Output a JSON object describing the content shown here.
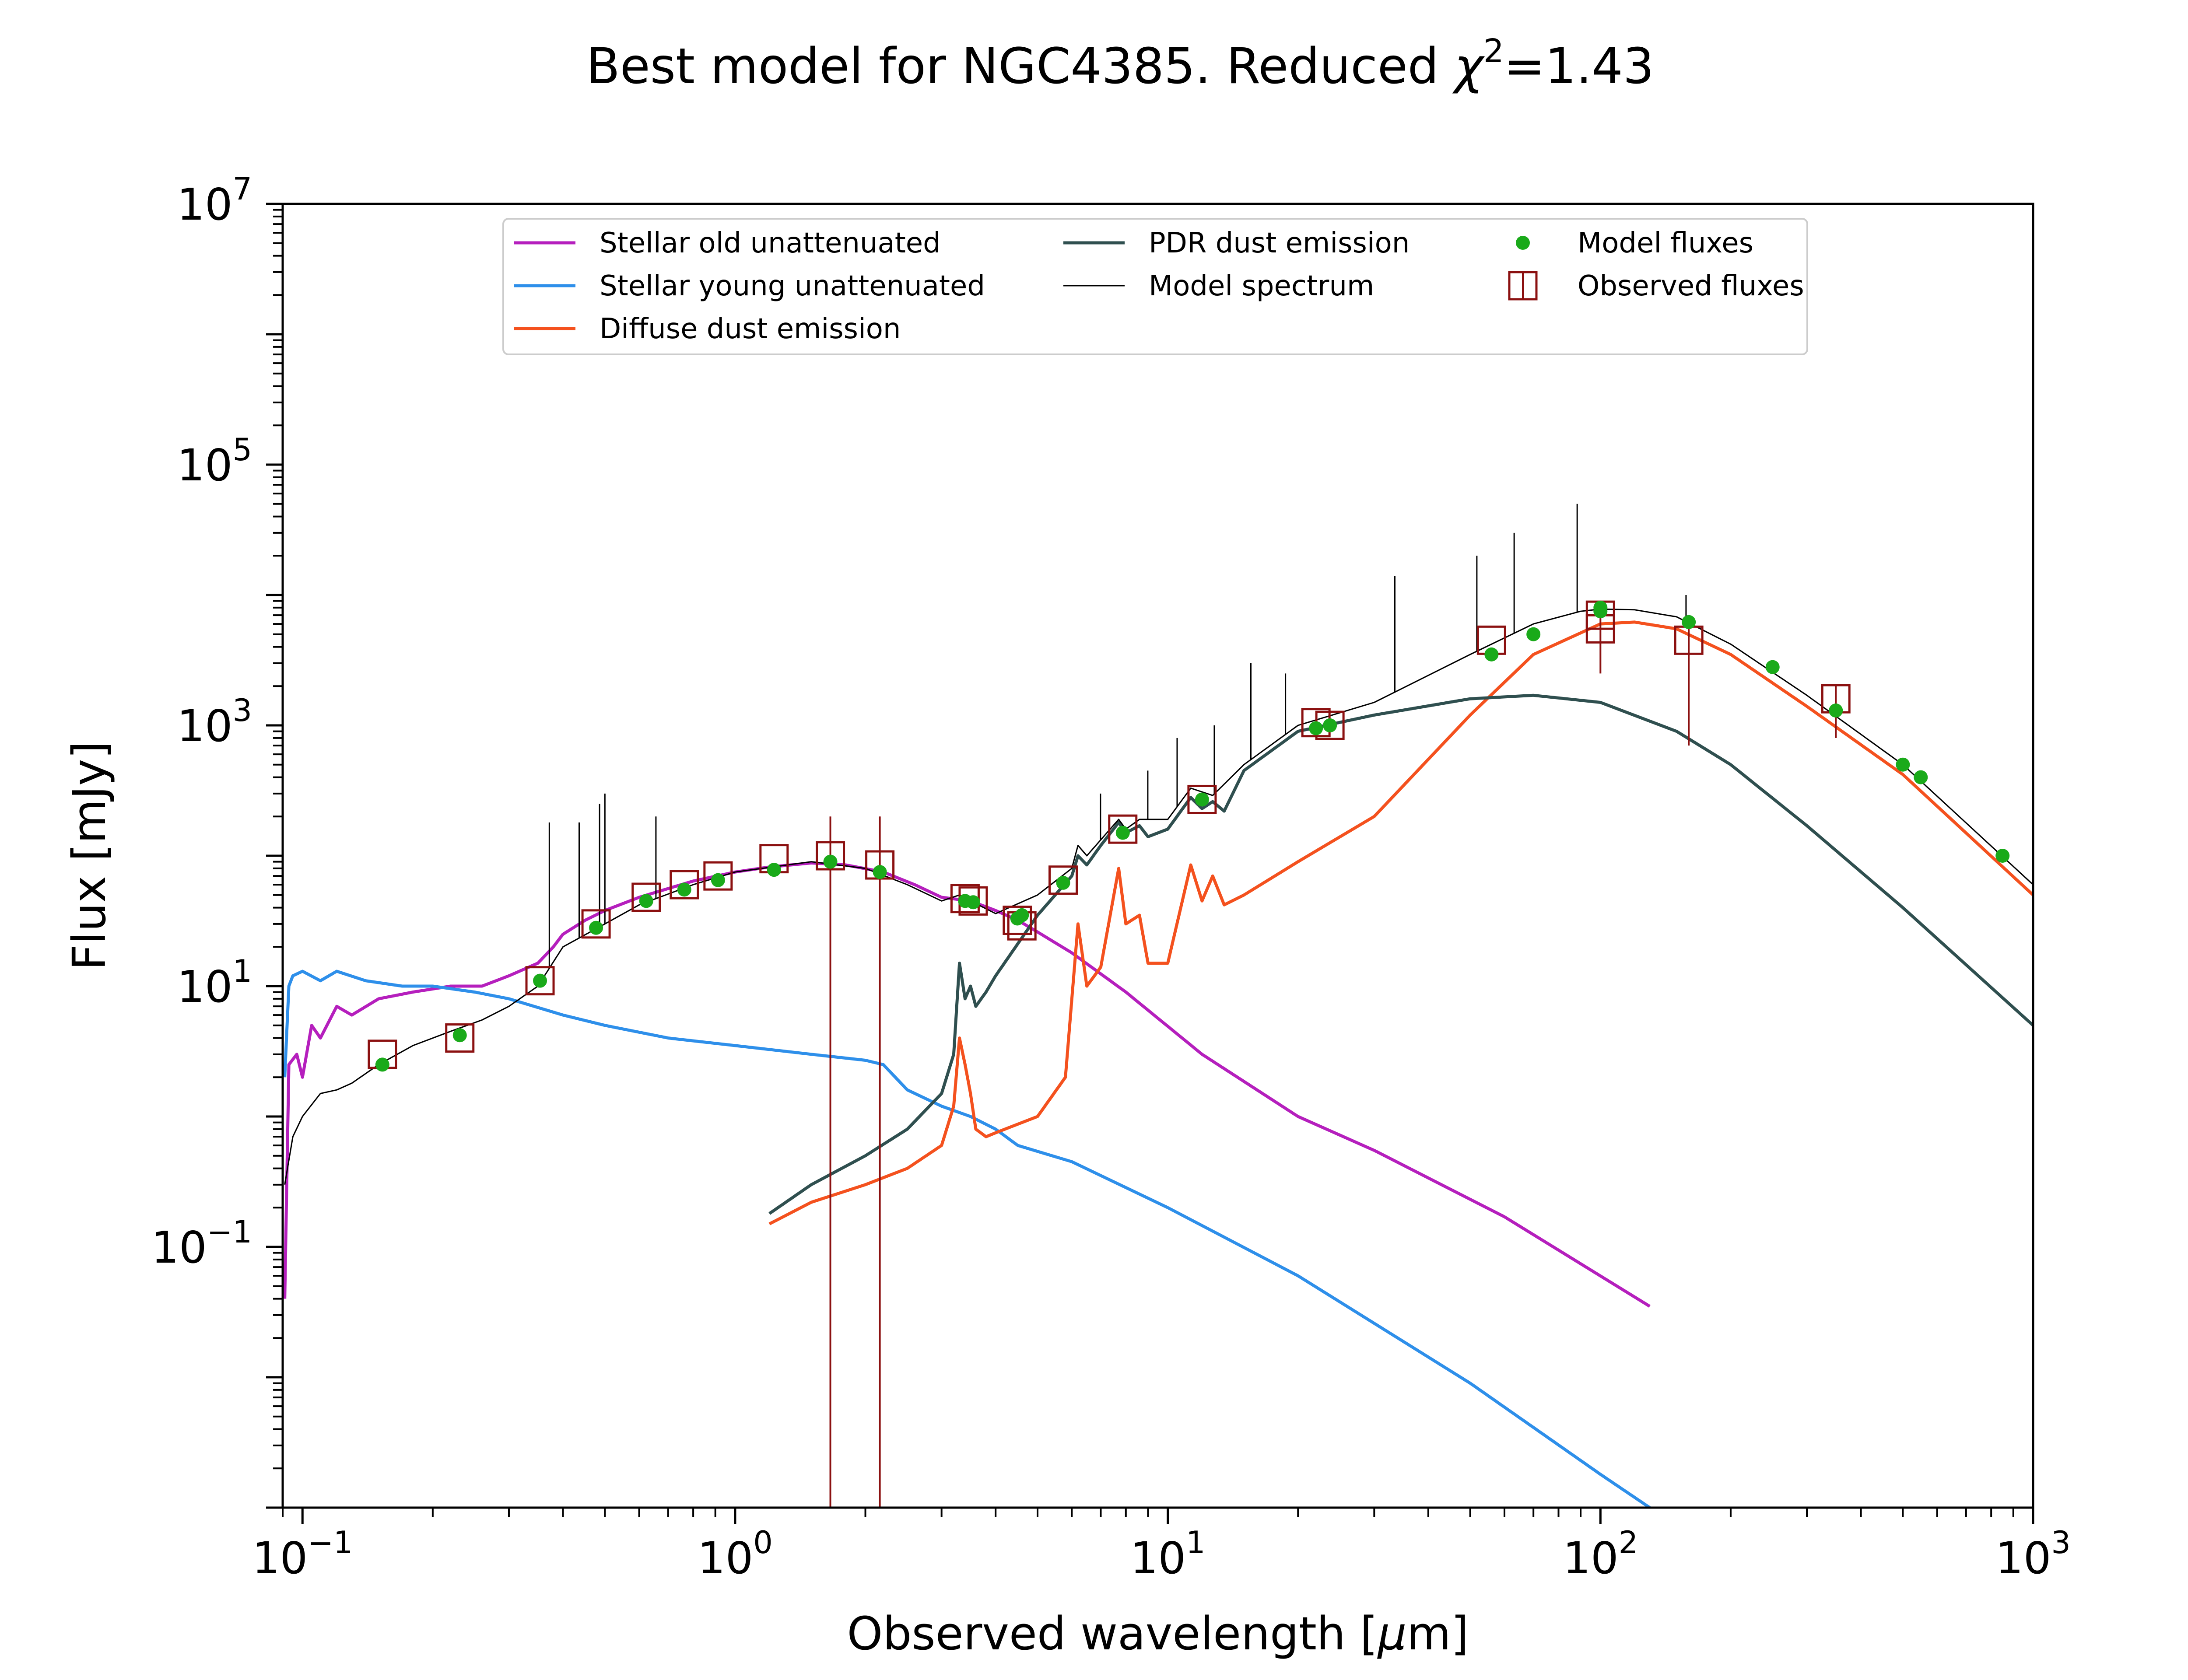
{
  "chart_data": {
    "type": "line",
    "title": "Best model for NGC4385. Reduced χ²=1.43",
    "title_parts": {
      "main": "Best model for NGC4385. Reduced ",
      "chi": "χ",
      "sup": "2",
      "tail": "=1.43"
    },
    "xlabel": "Observed wavelength [μm]",
    "ylabel": "Flux [mJy]",
    "x_scale": "log",
    "y_scale": "log",
    "xlim": [
      0.09,
      1000
    ],
    "ylim": [
      0.001,
      10000000
    ],
    "grid": false,
    "legend_position": "top-center",
    "x_ticks": [
      {
        "value": 0.1,
        "base": "10",
        "exp": "−1"
      },
      {
        "value": 1,
        "base": "10",
        "exp": "0"
      },
      {
        "value": 10,
        "base": "10",
        "exp": "1"
      },
      {
        "value": 100,
        "base": "10",
        "exp": "2"
      },
      {
        "value": 1000,
        "base": "10",
        "exp": "3"
      }
    ],
    "y_ticks": [
      {
        "value": 0.1,
        "base": "10",
        "exp": "−1"
      },
      {
        "value": 10,
        "base": "10",
        "exp": "1"
      },
      {
        "value": 1000,
        "base": "10",
        "exp": "3"
      },
      {
        "value": 100000,
        "base": "10",
        "exp": "5"
      },
      {
        "value": 10000000,
        "base": "10",
        "exp": "7"
      }
    ],
    "series": [
      {
        "name": "Stellar old unattenuated",
        "color": "#b51fbd",
        "x": [
          0.091,
          0.093,
          0.097,
          0.1,
          0.105,
          0.11,
          0.12,
          0.13,
          0.15,
          0.18,
          0.22,
          0.26,
          0.3,
          0.35,
          0.38,
          0.4,
          0.45,
          0.5,
          0.6,
          0.7,
          0.8,
          1.0,
          1.2,
          1.5,
          1.8,
          2.2,
          2.6,
          3.0,
          3.5,
          4.0,
          4.5,
          5.0,
          6.0,
          8.0,
          12,
          20,
          30,
          60,
          130
        ],
        "y": [
          0.04,
          2.5,
          3.0,
          2.0,
          5.0,
          4.0,
          7.0,
          6.0,
          8.0,
          9.0,
          10.0,
          10.0,
          12.0,
          15.0,
          20.0,
          25.0,
          32.0,
          38.0,
          48.0,
          56.0,
          64.0,
          75.0,
          82.0,
          88.0,
          85.0,
          75.0,
          60.0,
          48.0,
          45.0,
          38.0,
          32.0,
          26.0,
          18.0,
          9.0,
          3.0,
          1.0,
          0.55,
          0.17,
          0.035
        ]
      },
      {
        "name": "Stellar young unattenuated",
        "color": "#2e8fea",
        "x": [
          0.091,
          0.093,
          0.095,
          0.1,
          0.11,
          0.12,
          0.14,
          0.17,
          0.2,
          0.25,
          0.3,
          0.4,
          0.5,
          0.7,
          1.0,
          1.5,
          2.0,
          2.2,
          2.5,
          3.0,
          3.5,
          4.0,
          4.5,
          6.0,
          10,
          20,
          50,
          100,
          130
        ],
        "y": [
          2.0,
          10.0,
          12.0,
          13.0,
          11.0,
          13.0,
          11.0,
          10.0,
          10.0,
          9.0,
          8.0,
          6.0,
          5.0,
          4.0,
          3.5,
          3.0,
          2.7,
          2.5,
          1.6,
          1.2,
          1.0,
          0.8,
          0.6,
          0.45,
          0.2,
          0.06,
          0.009,
          0.0018,
          0.001
        ]
      },
      {
        "name": "Diffuse dust emission",
        "color": "#f4511e",
        "x": [
          1.2,
          1.5,
          2.0,
          2.5,
          3.0,
          3.2,
          3.3,
          3.4,
          3.5,
          3.6,
          3.8,
          4.0,
          5.0,
          5.8,
          6.2,
          6.5,
          7.0,
          7.7,
          8.0,
          8.6,
          9.0,
          10.0,
          11.3,
          12.0,
          12.7,
          13.5,
          15,
          20,
          30,
          50,
          70,
          100,
          120,
          150,
          200,
          300,
          500,
          1000
        ],
        "y": [
          0.15,
          0.22,
          0.3,
          0.4,
          0.6,
          1.2,
          4.0,
          2.5,
          1.5,
          0.8,
          0.7,
          0.75,
          1.0,
          2.0,
          30.0,
          10.0,
          14.0,
          80.0,
          30.0,
          35.0,
          15.0,
          15.0,
          85.0,
          45.0,
          70.0,
          42.0,
          50.0,
          90.0,
          200.0,
          1200.0,
          3500.0,
          6000.0,
          6200.0,
          5500.0,
          3500.0,
          1400.0,
          420.0,
          50.0
        ]
      },
      {
        "name": "PDR dust emission",
        "color": "#2f4f4f",
        "x": [
          1.2,
          1.5,
          2.0,
          2.5,
          3.0,
          3.2,
          3.3,
          3.4,
          3.5,
          3.6,
          3.8,
          4.0,
          5.0,
          6.0,
          6.2,
          6.5,
          7.0,
          7.7,
          8.0,
          8.6,
          9.0,
          10.0,
          11.3,
          12.0,
          12.7,
          13.5,
          15,
          20,
          30,
          50,
          70,
          100,
          150,
          200,
          300,
          500,
          1000
        ],
        "y": [
          0.18,
          0.3,
          0.5,
          0.8,
          1.5,
          3.0,
          15.0,
          8.0,
          10.0,
          7.0,
          9.0,
          12.0,
          35.0,
          70.0,
          100.0,
          85.0,
          120.0,
          180.0,
          150.0,
          170.0,
          140.0,
          160.0,
          280.0,
          230.0,
          260.0,
          220.0,
          450.0,
          900.0,
          1200.0,
          1600.0,
          1700.0,
          1500.0,
          900.0,
          500.0,
          170.0,
          40.0,
          5.0
        ]
      },
      {
        "name": "Model spectrum",
        "color": "#000000",
        "x": [
          0.091,
          0.095,
          0.1,
          0.11,
          0.12,
          0.13,
          0.15,
          0.18,
          0.22,
          0.26,
          0.3,
          0.35,
          0.4,
          0.5,
          0.6,
          0.8,
          1.0,
          1.5,
          2.0,
          2.5,
          3.0,
          3.3,
          3.5,
          4.0,
          5.0,
          6.0,
          6.2,
          6.5,
          7.7,
          8.0,
          8.6,
          10.0,
          11.3,
          12.7,
          15,
          20,
          30,
          50,
          70,
          90,
          100,
          120,
          150,
          200,
          300,
          500,
          1000
        ],
        "y": [
          0.3,
          0.7,
          1.0,
          1.5,
          1.6,
          1.8,
          2.5,
          3.5,
          4.5,
          5.5,
          7.0,
          10.0,
          20.0,
          30.0,
          42.0,
          60.0,
          75.0,
          90.0,
          80.0,
          60.0,
          45.0,
          50.0,
          45.0,
          36.0,
          50.0,
          80.0,
          120.0,
          100.0,
          190.0,
          160.0,
          190.0,
          190.0,
          330.0,
          290.0,
          500.0,
          1000.0,
          1500.0,
          3500.0,
          6000.0,
          7500.0,
          7800.0,
          7700.0,
          6800.0,
          4200.0,
          1700.0,
          500.0,
          60.0
        ]
      }
    ],
    "emission_lines": [
      {
        "x": 0.372,
        "y": 180
      },
      {
        "x": 0.436,
        "y": 180
      },
      {
        "x": 0.486,
        "y": 250
      },
      {
        "x": 0.5,
        "y": 300
      },
      {
        "x": 0.656,
        "y": 200
      },
      {
        "x": 6.99,
        "y": 300
      },
      {
        "x": 8.99,
        "y": 450
      },
      {
        "x": 10.51,
        "y": 800
      },
      {
        "x": 12.81,
        "y": 1000
      },
      {
        "x": 15.56,
        "y": 3000
      },
      {
        "x": 18.71,
        "y": 2500
      },
      {
        "x": 33.48,
        "y": 14000
      },
      {
        "x": 51.8,
        "y": 20000
      },
      {
        "x": 63.18,
        "y": 30000
      },
      {
        "x": 88.36,
        "y": 50000
      },
      {
        "x": 157.7,
        "y": 10000
      }
    ],
    "model_fluxes": {
      "name": "Model fluxes",
      "color": "#1aaa1a",
      "x": [
        0.153,
        0.231,
        0.354,
        0.477,
        0.623,
        0.763,
        0.913,
        1.23,
        1.66,
        2.16,
        3.4,
        3.55,
        4.49,
        4.6,
        5.73,
        7.87,
        12.0,
        22.0,
        23.7,
        56.0,
        70.0,
        100.0,
        100.0,
        160.0,
        250.0,
        350.0,
        500.0,
        550.0,
        850.0
      ],
      "y": [
        2.5,
        4.2,
        11.0,
        28.0,
        45.0,
        55.0,
        65.0,
        78.0,
        90.0,
        75.0,
        45.0,
        44.0,
        33.0,
        35.0,
        62.0,
        150.0,
        270.0,
        950.0,
        1000.0,
        3500.0,
        5000.0,
        7500.0,
        8000.0,
        6200.0,
        2800.0,
        1300.0,
        500.0,
        400.0,
        100.0
      ]
    },
    "observed_fluxes": {
      "name": "Observed fluxes",
      "color": "#8b1010",
      "x": [
        0.153,
        0.231,
        0.354,
        0.477,
        0.623,
        0.763,
        0.913,
        1.23,
        1.66,
        2.16,
        3.4,
        3.55,
        4.49,
        4.6,
        5.73,
        7.87,
        12.0,
        22.0,
        23.7,
        56.0,
        100.0,
        100.0,
        160.0,
        350.0
      ],
      "y": [
        3.0,
        4.0,
        11.0,
        30.0,
        48.0,
        60.0,
        70.0,
        95.0,
        100.0,
        85.0,
        47.0,
        45.0,
        32.0,
        29.0,
        65.0,
        160.0,
        270.0,
        1050.0,
        1000.0,
        4500.0,
        5500.0,
        7000.0,
        4500.0,
        1600.0
      ],
      "err_low": [
        null,
        null,
        null,
        null,
        null,
        null,
        null,
        null,
        0.001,
        0.001,
        null,
        null,
        null,
        null,
        null,
        null,
        null,
        null,
        null,
        null,
        2500,
        null,
        700,
        800
      ],
      "err_high": [
        null,
        null,
        null,
        null,
        null,
        null,
        null,
        null,
        200,
        200,
        null,
        null,
        null,
        null,
        null,
        null,
        null,
        null,
        null,
        null,
        9000,
        null,
        6000,
        2000
      ]
    }
  }
}
